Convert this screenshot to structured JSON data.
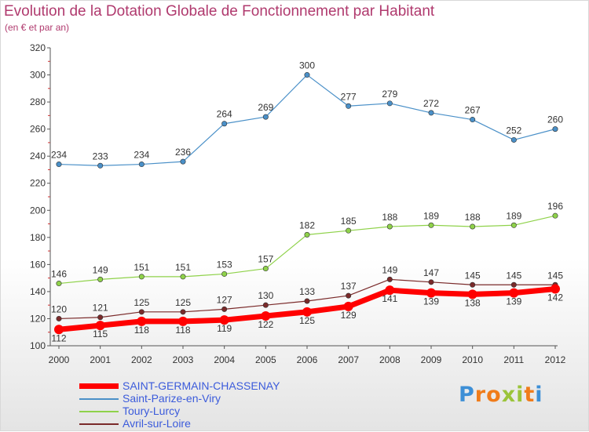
{
  "title": "Evolution de la Dotation Globale de Fonctionnement par Habitant",
  "subtitle": "(en € et par an)",
  "logo": {
    "text": "Proxiti"
  },
  "chart_data": {
    "type": "line",
    "x": [
      "2000",
      "2001",
      "2002",
      "2003",
      "2004",
      "2005",
      "2006",
      "2007",
      "2008",
      "2009",
      "2010",
      "2011",
      "2012"
    ],
    "ylim": [
      100,
      320
    ],
    "yticks": [
      100,
      120,
      140,
      160,
      180,
      200,
      220,
      240,
      260,
      280,
      300,
      320
    ],
    "grid": false,
    "legend_position": "bottom",
    "series": [
      {
        "name": "SAINT-GERMAIN-CHASSENAY",
        "color": "#ff0000",
        "values": [
          112,
          115,
          118,
          118,
          119,
          122,
          125,
          129,
          141,
          139,
          138,
          139,
          142
        ]
      },
      {
        "name": "Saint-Parize-en-Viry",
        "color": "#4a90c8",
        "values": [
          234,
          233,
          234,
          236,
          264,
          269,
          300,
          277,
          279,
          272,
          267,
          252,
          260
        ]
      },
      {
        "name": "Toury-Lurcy",
        "color": "#8fd24a",
        "values": [
          146,
          149,
          151,
          151,
          153,
          157,
          182,
          185,
          188,
          189,
          188,
          189,
          196
        ]
      },
      {
        "name": "Avril-sur-Loire",
        "color": "#7a2a2a",
        "values": [
          120,
          121,
          125,
          125,
          127,
          130,
          133,
          137,
          149,
          147,
          145,
          145,
          145
        ]
      }
    ]
  }
}
